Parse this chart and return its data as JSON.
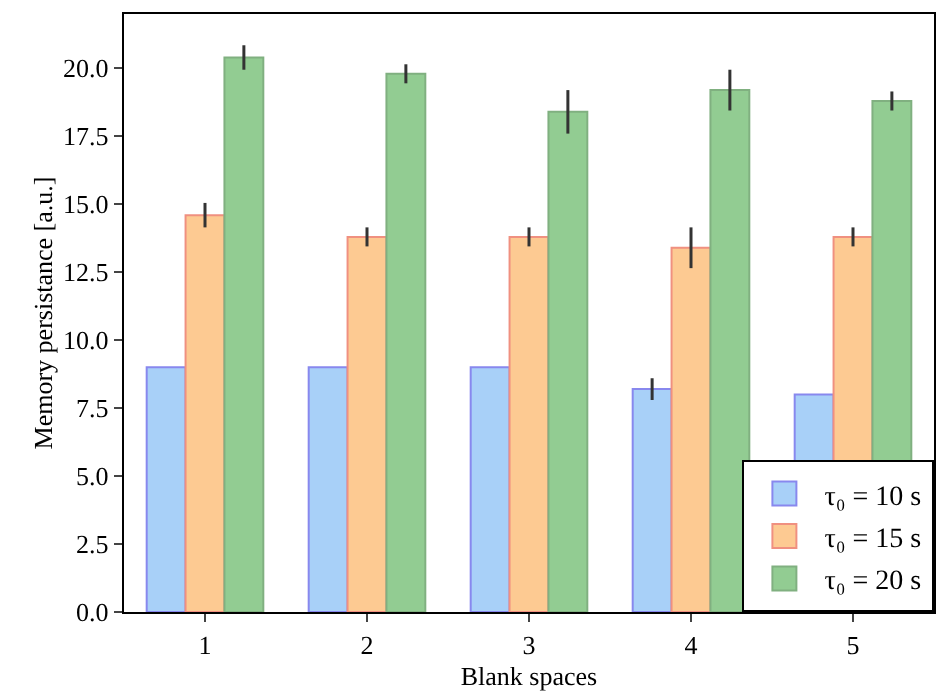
{
  "chart_data": {
    "type": "bar",
    "xlabel": "Blank spaces",
    "ylabel": "Memory persistance [a.u.]",
    "categories": [
      "1",
      "2",
      "3",
      "4",
      "5"
    ],
    "series": [
      {
        "name": "τ₀ = 10 s",
        "color": "#a8d0f8",
        "values": [
          9.0,
          9.0,
          9.0,
          8.2,
          8.0
        ],
        "errors": [
          null,
          null,
          null,
          0.4,
          null
        ]
      },
      {
        "name": "τ₀ = 15 s",
        "color": "#fdca92",
        "values": [
          14.6,
          13.8,
          13.8,
          13.4,
          13.8
        ],
        "errors": [
          0.45,
          0.35,
          0.35,
          0.75,
          0.35
        ]
      },
      {
        "name": "τ₀ = 20 s",
        "color": "#92cc92",
        "values": [
          20.4,
          19.8,
          18.4,
          19.2,
          18.8
        ],
        "errors": [
          0.45,
          0.35,
          0.8,
          0.75,
          0.35
        ]
      }
    ],
    "ylim": [
      0,
      22
    ],
    "yticks": [
      {
        "value": 0,
        "label": "0.0"
      },
      {
        "value": 2.5,
        "label": "2.5"
      },
      {
        "value": 5,
        "label": "5.0"
      },
      {
        "value": 7.5,
        "label": "7.5"
      },
      {
        "value": 10,
        "label": "10.0"
      },
      {
        "value": 12.5,
        "label": "12.5"
      },
      {
        "value": 15,
        "label": "15.0"
      },
      {
        "value": 17.5,
        "label": "17.5"
      },
      {
        "value": 20,
        "label": "20.0"
      }
    ],
    "grid": false,
    "legend": "bottom right"
  }
}
